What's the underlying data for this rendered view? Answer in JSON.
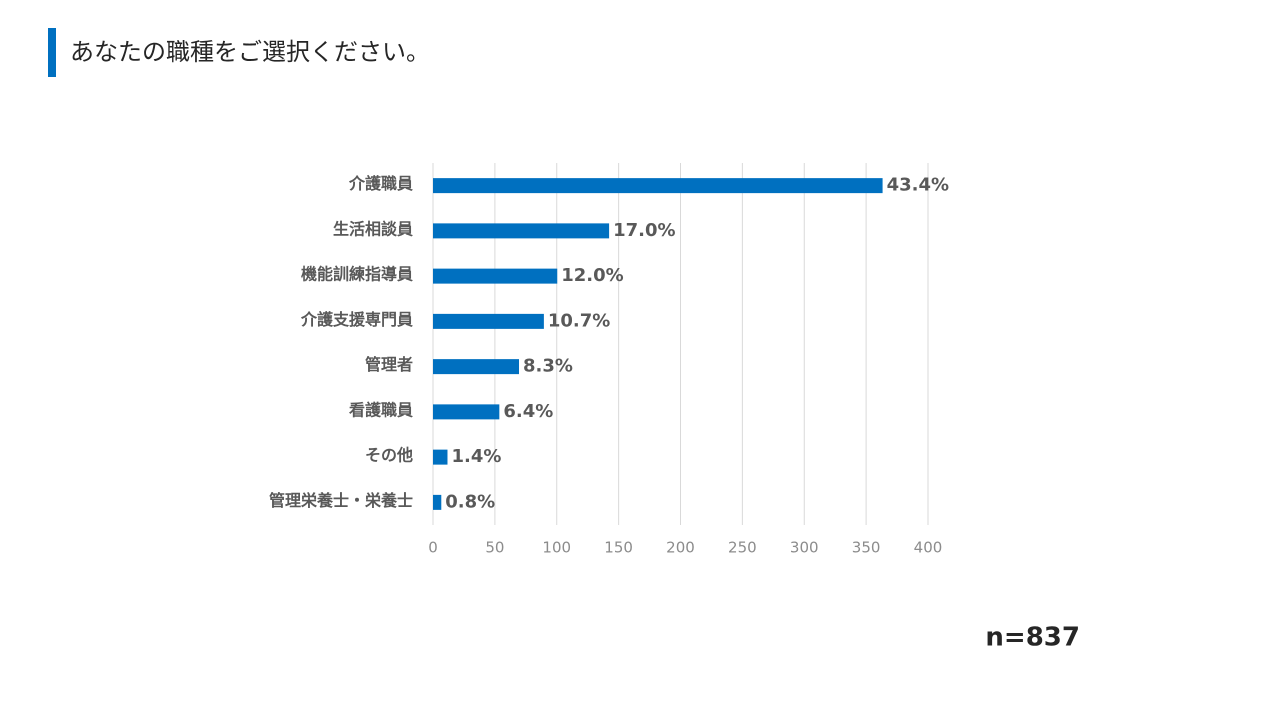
{
  "title": "あなたの職種をご選択ください。",
  "note": "n=837",
  "chart_data": {
    "type": "bar",
    "orientation": "horizontal",
    "categories": [
      "介護職員",
      "生活相談員",
      "機能訓練指導員",
      "介護支援専門員",
      "管理者",
      "看護職員",
      "その他",
      "管理栄養士・栄養士"
    ],
    "values": [
      363.3,
      142.3,
      100.4,
      89.6,
      69.5,
      53.6,
      11.7,
      6.7
    ],
    "value_labels": [
      "43.4%",
      "17.0%",
      "12.0%",
      "10.7%",
      "8.3%",
      "6.4%",
      "1.4%",
      "0.8%"
    ],
    "color": "#0070c0",
    "xlim": [
      0,
      400
    ],
    "xticks": [
      0,
      50,
      100,
      150,
      200,
      250,
      300,
      350,
      400
    ],
    "grid": true
  }
}
